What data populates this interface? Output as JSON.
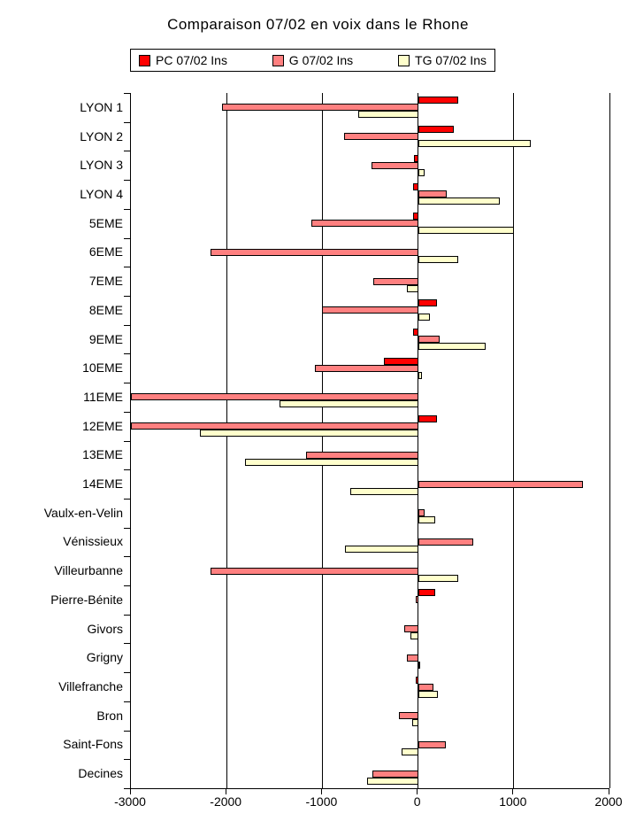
{
  "title": "Comparaison 07/02 en voix dans le Rhone",
  "chart_data": {
    "type": "bar",
    "orientation": "horizontal",
    "title": "Comparaison 07/02 en voix dans le Rhone",
    "xlabel": "",
    "ylabel": "",
    "xlim": [
      -3000,
      2000
    ],
    "x_ticks": [
      -3000,
      -2000,
      -1000,
      0,
      1000,
      2000
    ],
    "x_tick_labels": [
      "-3000",
      "-2000",
      "-1000",
      "0",
      "1000",
      "2000"
    ],
    "grid": true,
    "legend_position": "top",
    "categories": [
      "LYON 1",
      "LYON 2",
      "LYON 3",
      "LYON 4",
      "5EME",
      "6EME",
      "7EME",
      "8EME",
      "9EME",
      "10EME",
      "11EME",
      "12EME",
      "13EME",
      "14EME",
      "Vaulx-en-Velin",
      "Vénissieux",
      "Villeurbanne",
      "Pierre-Bénite",
      "Givors",
      "Grigny",
      "Villefranche",
      "Bron",
      "Saint-Fons",
      "Decines"
    ],
    "series": [
      {
        "name": "PC 07/02 Ins",
        "color": "#FF0000",
        "values": [
          420,
          375,
          -40,
          -50,
          -50,
          0,
          0,
          200,
          -55,
          -355,
          0,
          195,
          0,
          0,
          0,
          0,
          0,
          175,
          0,
          0,
          -20,
          0,
          0,
          0
        ]
      },
      {
        "name": "G 07/02 Ins",
        "color": "#FF8080",
        "values": [
          -2050,
          -775,
          -490,
          300,
          -1110,
          -2165,
          -465,
          -1000,
          230,
          -1075,
          -3000,
          -3000,
          -1170,
          1725,
          65,
          580,
          -2165,
          -20,
          -145,
          -115,
          160,
          -200,
          290,
          -480
        ]
      },
      {
        "name": "TG 07/02 Ins",
        "color": "#FFFFCC",
        "values": [
          -625,
          1175,
          65,
          855,
          1000,
          420,
          -115,
          125,
          705,
          40,
          -1450,
          -2275,
          -1805,
          -710,
          175,
          -765,
          420,
          0,
          -75,
          25,
          210,
          -60,
          -175,
          -535
        ]
      }
    ]
  }
}
